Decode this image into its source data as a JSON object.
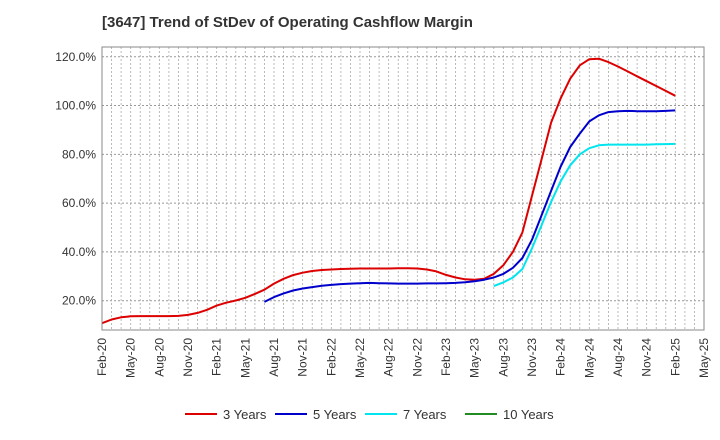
{
  "chart_data": {
    "type": "line",
    "title": "[3647]  Trend of StDev of Operating Cashflow Margin",
    "xlabel": "",
    "ylabel": "",
    "x_ticks": [
      "Feb-20",
      "May-20",
      "Aug-20",
      "Nov-20",
      "Feb-21",
      "May-21",
      "Aug-21",
      "Nov-21",
      "Feb-22",
      "May-22",
      "Aug-22",
      "Nov-22",
      "Feb-23",
      "May-23",
      "Aug-23",
      "Nov-23",
      "Feb-24",
      "May-24",
      "Aug-24",
      "Nov-24",
      "Feb-25",
      "May-25"
    ],
    "y_ticks": [
      "20.0%",
      "40.0%",
      "60.0%",
      "80.0%",
      "100.0%",
      "120.0%"
    ],
    "y_tick_values": [
      20,
      40,
      60,
      80,
      100,
      120
    ],
    "ylim": [
      8,
      124
    ],
    "grid": true,
    "legend_position": "bottom",
    "series": [
      {
        "name": "3 Years",
        "color": "#dd0000",
        "x": [
          "Feb-20",
          "Mar-20",
          "Apr-20",
          "May-20",
          "Jun-20",
          "Jul-20",
          "Aug-20",
          "Sep-20",
          "Oct-20",
          "Nov-20",
          "Dec-20",
          "Jan-21",
          "Feb-21",
          "Mar-21",
          "Apr-21",
          "May-21",
          "Jun-21",
          "Jul-21",
          "Aug-21",
          "Sep-21",
          "Oct-21",
          "Nov-21",
          "Dec-21",
          "Jan-22",
          "Feb-22",
          "Mar-22",
          "Apr-22",
          "May-22",
          "Jun-22",
          "Jul-22",
          "Aug-22",
          "Sep-22",
          "Oct-22",
          "Nov-22",
          "Dec-22",
          "Jan-23",
          "Feb-23",
          "Mar-23",
          "Apr-23",
          "May-23",
          "Jun-23",
          "Jul-23",
          "Aug-23",
          "Sep-23",
          "Oct-23",
          "Nov-23",
          "Dec-23",
          "Jan-24",
          "Feb-24",
          "Mar-24",
          "Apr-24",
          "May-24",
          "Jun-24",
          "Jul-24",
          "Aug-24",
          "Sep-24",
          "Oct-24",
          "Nov-24",
          "Dec-24",
          "Jan-25",
          "Feb-25"
        ],
        "values": [
          10.8,
          12.3,
          13.2,
          13.6,
          13.7,
          13.7,
          13.7,
          13.7,
          13.8,
          14.2,
          15.0,
          16.3,
          18.0,
          19.2,
          20.1,
          21.2,
          22.8,
          24.5,
          27.0,
          29.0,
          30.5,
          31.5,
          32.2,
          32.6,
          32.8,
          33.0,
          33.1,
          33.2,
          33.2,
          33.2,
          33.2,
          33.3,
          33.3,
          33.2,
          32.8,
          32.0,
          30.6,
          29.5,
          28.8,
          28.6,
          29.0,
          31.0,
          34.5,
          40.0,
          48.0,
          63.0,
          78.0,
          93.0,
          103.0,
          111.0,
          116.5,
          119.0,
          119.2,
          117.8,
          116.0,
          114.0,
          112.0,
          110.0,
          108.0,
          106.0,
          104.0
        ]
      },
      {
        "name": "5 Years",
        "color": "#0000cc",
        "x": [
          "Jul-21",
          "Aug-21",
          "Sep-21",
          "Oct-21",
          "Nov-21",
          "Dec-21",
          "Jan-22",
          "Feb-22",
          "Mar-22",
          "Apr-22",
          "May-22",
          "Jun-22",
          "Jul-22",
          "Aug-22",
          "Sep-22",
          "Oct-22",
          "Nov-22",
          "Dec-22",
          "Jan-23",
          "Feb-23",
          "Mar-23",
          "Apr-23",
          "May-23",
          "Jun-23",
          "Jul-23",
          "Aug-23",
          "Sep-23",
          "Oct-23",
          "Nov-23",
          "Dec-23",
          "Jan-24",
          "Feb-24",
          "Mar-24",
          "Apr-24",
          "May-24",
          "Jun-24",
          "Jul-24",
          "Aug-24",
          "Sep-24",
          "Oct-24",
          "Nov-24",
          "Dec-24",
          "Jan-25",
          "Feb-25"
        ],
        "values": [
          19.5,
          21.5,
          23.0,
          24.2,
          25.0,
          25.6,
          26.1,
          26.5,
          26.8,
          27.0,
          27.2,
          27.3,
          27.2,
          27.1,
          27.0,
          27.0,
          27.0,
          27.1,
          27.1,
          27.2,
          27.3,
          27.6,
          28.0,
          28.6,
          29.5,
          31.0,
          33.5,
          37.5,
          45.0,
          55.0,
          65.0,
          75.0,
          83.0,
          88.5,
          93.5,
          96.0,
          97.3,
          97.7,
          97.8,
          97.7,
          97.7,
          97.7,
          97.8,
          98.0
        ]
      },
      {
        "name": "7 Years",
        "color": "#00e5ee",
        "x": [
          "Jul-23",
          "Aug-23",
          "Sep-23",
          "Oct-23",
          "Nov-23",
          "Dec-23",
          "Jan-24",
          "Feb-24",
          "Mar-24",
          "Apr-24",
          "May-24",
          "Jun-24",
          "Jul-24",
          "Aug-24",
          "Sep-24",
          "Oct-24",
          "Nov-24",
          "Dec-24",
          "Jan-25",
          "Feb-25"
        ],
        "values": [
          26.0,
          27.5,
          29.5,
          33.0,
          41.5,
          51.0,
          60.5,
          69.0,
          75.5,
          80.0,
          82.5,
          83.7,
          84.0,
          84.0,
          84.0,
          84.0,
          84.0,
          84.1,
          84.2,
          84.3
        ]
      },
      {
        "name": "10 Years",
        "color": "#228b22",
        "x": [],
        "values": []
      }
    ]
  }
}
